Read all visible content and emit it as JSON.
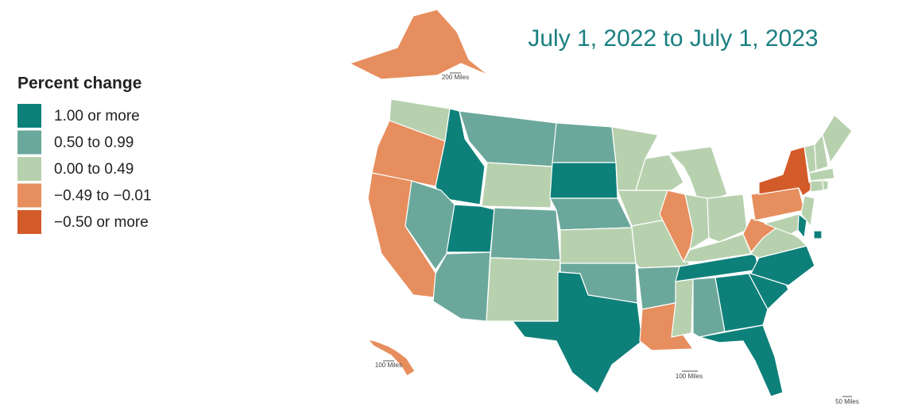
{
  "title": "July 1, 2022 to July 1, 2023",
  "legend": {
    "title": "Percent change",
    "items": [
      {
        "label": "1.00 or more",
        "color": "#0e807a"
      },
      {
        "label": "0.50 to 0.99",
        "color": "#6ba89b"
      },
      {
        "label": "0.00 to 0.49",
        "color": "#b7d1ae"
      },
      {
        "label": "−0.49 to −0.01",
        "color": "#e78e5e"
      },
      {
        "label": "−0.50 or more",
        "color": "#d35a29"
      }
    ]
  },
  "scale_labels": [
    "200 Miles",
    "100 Miles",
    "100 Miles",
    "50 Miles"
  ],
  "regions": [
    2,
    3,
    3,
    0,
    1,
    0,
    1,
    1,
    2,
    1,
    2,
    1,
    0,
    1,
    2,
    1,
    0,
    2,
    2,
    2,
    1,
    3,
    2,
    3,
    2,
    2,
    2,
    2,
    0,
    2,
    1,
    0,
    0,
    0,
    0,
    2,
    3,
    3,
    4,
    2,
    0,
    2,
    0,
    2,
    2,
    2,
    2,
    2,
    2,
    3,
    3
  ]
}
